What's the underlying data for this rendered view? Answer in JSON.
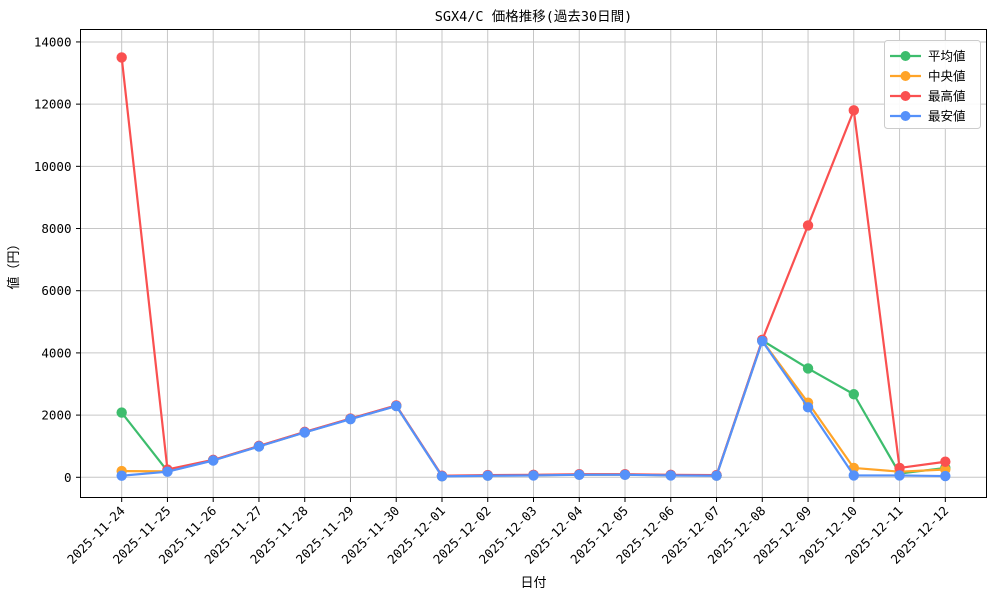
{
  "figure": {
    "background": "#ffffff",
    "grid_color": "#c6c6c6",
    "frame_color": "#000000",
    "legend_border_color": "#cccccc",
    "legend_background": "#ffffff"
  },
  "chart_data": {
    "type": "line",
    "title": "SGX4/C 価格推移(過去30日間)",
    "xlabel": "日付",
    "ylabel": "値（円）",
    "grid": true,
    "legend_position": "upper right",
    "xlim": [
      -0.9,
      18.9
    ],
    "ylim": [
      -650,
      14400
    ],
    "yticks": [
      0,
      2000,
      4000,
      6000,
      8000,
      10000,
      12000,
      14000
    ],
    "categories": [
      "2025-11-24",
      "2025-11-25",
      "2025-11-26",
      "2025-11-27",
      "2025-11-28",
      "2025-11-29",
      "2025-11-30",
      "2025-12-01",
      "2025-12-02",
      "2025-12-03",
      "2025-12-04",
      "2025-12-05",
      "2025-12-06",
      "2025-12-07",
      "2025-12-08",
      "2025-12-09",
      "2025-12-10",
      "2025-12-11",
      "2025-12-12"
    ],
    "series": [
      {
        "name": "平均値",
        "color": "#3dbd6d",
        "values": [
          2080,
          200,
          550,
          1000,
          1450,
          1880,
          2300,
          40,
          60,
          70,
          90,
          90,
          70,
          60,
          4400,
          3500,
          2670,
          120,
          300
        ]
      },
      {
        "name": "中央値",
        "color": "#ffa428",
        "values": [
          200,
          190,
          545,
          995,
          1445,
          1875,
          2295,
          35,
          55,
          65,
          85,
          85,
          65,
          55,
          4390,
          2400,
          300,
          180,
          250
        ]
      },
      {
        "name": "最高値",
        "color": "#fa5050",
        "values": [
          13500,
          250,
          560,
          1010,
          1460,
          1890,
          2310,
          50,
          70,
          80,
          100,
          100,
          80,
          70,
          4420,
          8100,
          11800,
          300,
          500
        ]
      },
      {
        "name": "最安値",
        "color": "#5591fa",
        "values": [
          50,
          180,
          540,
          990,
          1440,
          1870,
          2290,
          30,
          50,
          60,
          80,
          80,
          60,
          50,
          4380,
          2250,
          60,
          60,
          40
        ]
      }
    ]
  }
}
